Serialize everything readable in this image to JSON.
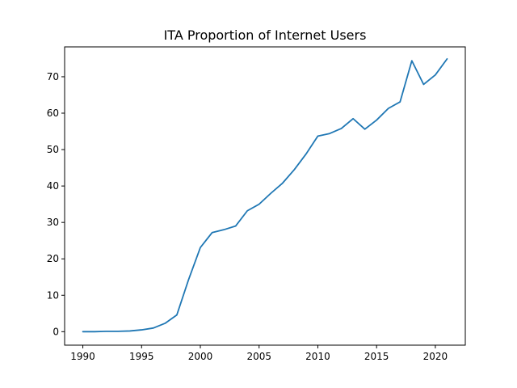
{
  "chart_data": {
    "type": "line",
    "title": "ITA Proportion of Internet Users",
    "xlabel": "",
    "ylabel": "",
    "xlim": [
      1988.45,
      2022.55
    ],
    "ylim": [
      -3.7,
      78.2
    ],
    "xticks": [
      1990,
      1995,
      2000,
      2005,
      2010,
      2015,
      2020
    ],
    "yticks": [
      0,
      10,
      20,
      30,
      40,
      50,
      60,
      70
    ],
    "grid": false,
    "series": [
      {
        "color": "#1f77b4",
        "x": [
          1990,
          1991,
          1992,
          1993,
          1994,
          1995,
          1996,
          1997,
          1998,
          1999,
          2000,
          2001,
          2002,
          2003,
          2004,
          2005,
          2006,
          2007,
          2008,
          2009,
          2010,
          2011,
          2012,
          2013,
          2014,
          2015,
          2016,
          2017,
          2018,
          2019,
          2020,
          2021
        ],
        "y": [
          0.0,
          0.0,
          0.1,
          0.1,
          0.2,
          0.5,
          1.0,
          2.3,
          4.6,
          14.3,
          23.1,
          27.2,
          28.0,
          29.0,
          33.2,
          35.0,
          38.0,
          40.8,
          44.5,
          48.8,
          53.7,
          54.4,
          55.8,
          58.5,
          55.6,
          58.1,
          61.3,
          63.1,
          74.4,
          67.9,
          70.5,
          74.9
        ]
      }
    ]
  }
}
